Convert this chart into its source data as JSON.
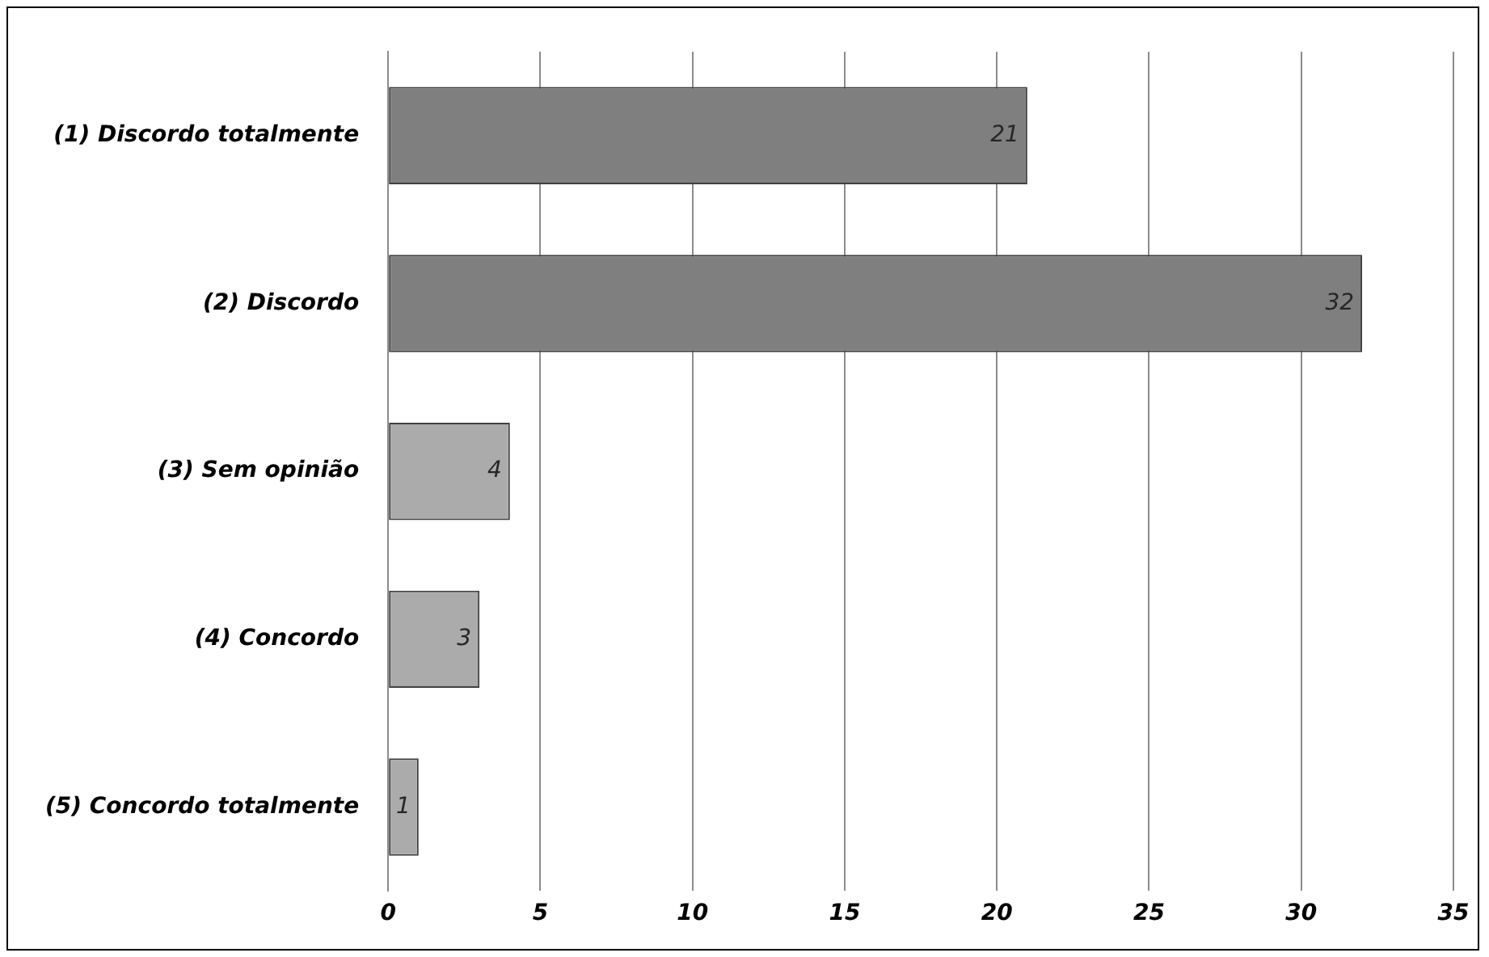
{
  "chart_data": {
    "type": "bar",
    "orientation": "horizontal",
    "categories": [
      "(1) Discordo totalmente",
      "(2) Discordo",
      "(3) Sem opinião",
      "(4) Concordo",
      "(5) Concordo totalmente"
    ],
    "values": [
      21,
      32,
      4,
      3,
      1
    ],
    "colors": [
      "#7f7f7f",
      "#7f7f7f",
      "#ababab",
      "#ababab",
      "#ababab"
    ],
    "xlim": [
      0,
      35
    ],
    "xticks": [
      0,
      5,
      10,
      15,
      20,
      25,
      30,
      35
    ],
    "grid": "x",
    "legend": false,
    "data_labels": true
  }
}
